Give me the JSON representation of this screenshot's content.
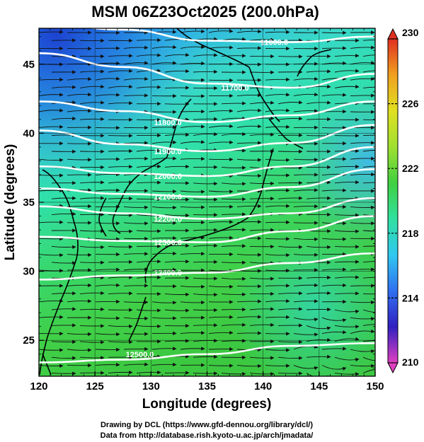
{
  "chart_data": {
    "type": "map-contour",
    "title": "MSM 06Z23Oct2025 (200.0hPa)",
    "xlabel": "Longitude (degrees)",
    "ylabel": "Latitude  (degrees)",
    "xlim": [
      120,
      150
    ],
    "ylim": [
      22.4,
      47.6
    ],
    "x_ticks": [
      120,
      125,
      130,
      135,
      140,
      145,
      150
    ],
    "y_ticks": [
      25,
      30,
      35,
      40,
      45
    ],
    "colorbar": {
      "min": 210,
      "max": 230,
      "tick_values": [
        210,
        214,
        218,
        222,
        226,
        230
      ],
      "colors": [
        "#e040c0",
        "#3020c0",
        "#3070f0",
        "#30c8f0",
        "#30e0a0",
        "#40d040",
        "#a0e030",
        "#e0e020",
        "#f0a020",
        "#e03020"
      ]
    },
    "contours": [
      {
        "label": "11600.0",
        "lat": [
          48.0,
          47.5,
          46.7,
          46.6,
          47.0
        ],
        "label_lon": 141.0,
        "label_lat": 46.6
      },
      {
        "label": "11700.0",
        "lat": [
          45.8,
          44.8,
          43.6,
          43.3,
          44.3
        ],
        "label_lon": 137.5,
        "label_lat": 43.3
      },
      {
        "label": "11800.0",
        "lat": [
          42.3,
          41.6,
          40.8,
          41.3,
          42.3
        ],
        "label_lon": 131.5,
        "label_lat": 40.8
      },
      {
        "label": "11900.0",
        "lat": [
          40.2,
          39.2,
          38.7,
          39.3,
          40.6
        ],
        "label_lon": 131.5,
        "label_lat": 38.7
      },
      {
        "label": "12000.0",
        "lat": [
          37.6,
          37.1,
          36.9,
          37.6,
          39.0
        ],
        "label_lon": 131.5,
        "label_lat": 36.9
      },
      {
        "label": "12100.0",
        "lat": [
          36.0,
          35.6,
          35.4,
          36.1,
          37.4
        ],
        "label_lon": 131.5,
        "label_lat": 35.4
      },
      {
        "label": "12200.0",
        "lat": [
          34.7,
          34.2,
          33.8,
          34.2,
          35.3
        ],
        "label_lon": 131.5,
        "label_lat": 33.8
      },
      {
        "label": "12300.0",
        "lat": [
          32.5,
          32.2,
          32.1,
          32.9,
          34.0
        ],
        "label_lon": 131.5,
        "label_lat": 32.1
      },
      {
        "label": "12400.0",
        "lat": [
          29.4,
          29.7,
          29.9,
          30.6,
          31.3
        ],
        "label_lon": 131.5,
        "label_lat": 29.9
      },
      {
        "label": "12500.0",
        "lat": [
          23.4,
          23.6,
          24.0,
          24.6,
          24.8
        ],
        "label_lon": 129.0,
        "label_lat": 24.0
      }
    ],
    "contour_lons": [
      120,
      127.5,
      135,
      142.5,
      150
    ]
  },
  "footer": {
    "line1": "Drawing by DCL (https://www.gfd-dennou.org/library/dcl/)",
    "line2": "Data from http://database.rish.kyoto-u.ac.jp/arch/jmadata/"
  }
}
